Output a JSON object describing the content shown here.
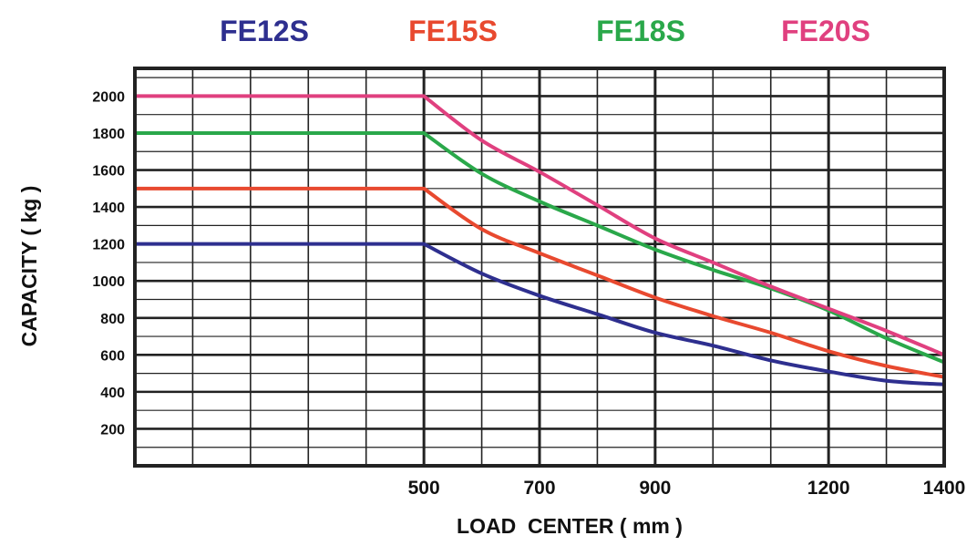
{
  "chart_data": {
    "type": "line",
    "xlabel": "LOAD  CENTER ( mm )",
    "ylabel": "CAPACITY  ( kg )",
    "xlim": [
      0,
      1400
    ],
    "ylim": [
      0,
      2150
    ],
    "x_ticks": [
      {
        "value": 500,
        "label": "500"
      },
      {
        "value": 700,
        "label": "700"
      },
      {
        "value": 900,
        "label": "900"
      },
      {
        "value": 1200,
        "label": "1200"
      },
      {
        "value": 1400,
        "label": "1400"
      }
    ],
    "y_ticks": [
      {
        "value": 200,
        "label": "200"
      },
      {
        "value": 400,
        "label": "400"
      },
      {
        "value": 600,
        "label": "600"
      },
      {
        "value": 800,
        "label": "800"
      },
      {
        "value": 1000,
        "label": "1000"
      },
      {
        "value": 1200,
        "label": "1200"
      },
      {
        "value": 1400,
        "label": "1400"
      },
      {
        "value": 1600,
        "label": "1600"
      },
      {
        "value": 1800,
        "label": "1800"
      },
      {
        "value": 2000,
        "label": "2000"
      }
    ],
    "grid": true,
    "legend": "top",
    "series": [
      {
        "name": "FE12S",
        "color": "#2e2f8f",
        "x": [
          0,
          500,
          600,
          700,
          800,
          900,
          1000,
          1100,
          1200,
          1300,
          1400
        ],
        "y": [
          1200,
          1200,
          1040,
          920,
          820,
          720,
          650,
          570,
          510,
          460,
          440
        ]
      },
      {
        "name": "FE15S",
        "color": "#e8492f",
        "x": [
          0,
          500,
          600,
          700,
          800,
          900,
          1000,
          1100,
          1200,
          1300,
          1400
        ],
        "y": [
          1500,
          1500,
          1280,
          1150,
          1030,
          910,
          810,
          720,
          620,
          540,
          480
        ]
      },
      {
        "name": "FE18S",
        "color": "#2aa84a",
        "x": [
          0,
          500,
          600,
          700,
          800,
          900,
          1000,
          1100,
          1200,
          1300,
          1400
        ],
        "y": [
          1800,
          1800,
          1580,
          1430,
          1300,
          1170,
          1060,
          960,
          840,
          690,
          560
        ]
      },
      {
        "name": "FE20S",
        "color": "#e0407f",
        "x": [
          0,
          500,
          600,
          700,
          800,
          900,
          1000,
          1100,
          1200,
          1300,
          1400
        ],
        "y": [
          2000,
          2000,
          1760,
          1590,
          1410,
          1230,
          1100,
          970,
          850,
          730,
          600
        ]
      }
    ]
  }
}
